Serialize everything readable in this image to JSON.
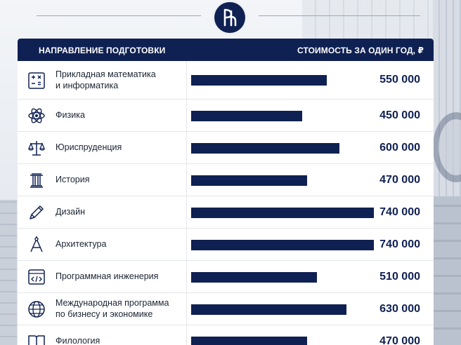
{
  "header": {
    "direction_label": "НАПРАВЛЕНИЕ ПОДГОТОВКИ",
    "cost_label": "СТОИМОСТЬ ЗА ОДИН ГОД, ₽"
  },
  "colors": {
    "navy": "#0f2052",
    "bar": "#0f2052",
    "panel": "#ffffff"
  },
  "chart_data": {
    "type": "bar",
    "orientation": "horizontal",
    "xlim": [
      0,
      740000
    ],
    "categories": [
      "Прикладная математика\nи информатика",
      "Физика",
      "Юриспруденция",
      "История",
      "Дизайн",
      "Архитектура",
      "Программная инженерия",
      "Международная программа\nпо бизнесу и экономике",
      "Филология"
    ],
    "values": [
      550000,
      450000,
      600000,
      470000,
      740000,
      740000,
      510000,
      630000,
      470000
    ],
    "value_labels": [
      "550 000",
      "450 000",
      "600 000",
      "470 000",
      "740 000",
      "740 000",
      "510 000",
      "630 000",
      "470 000"
    ],
    "icons": [
      "math-icon",
      "atom-icon",
      "scales-icon",
      "column-icon",
      "pencil-icon",
      "compass-icon",
      "code-icon",
      "globe-icon",
      "book-icon"
    ]
  }
}
